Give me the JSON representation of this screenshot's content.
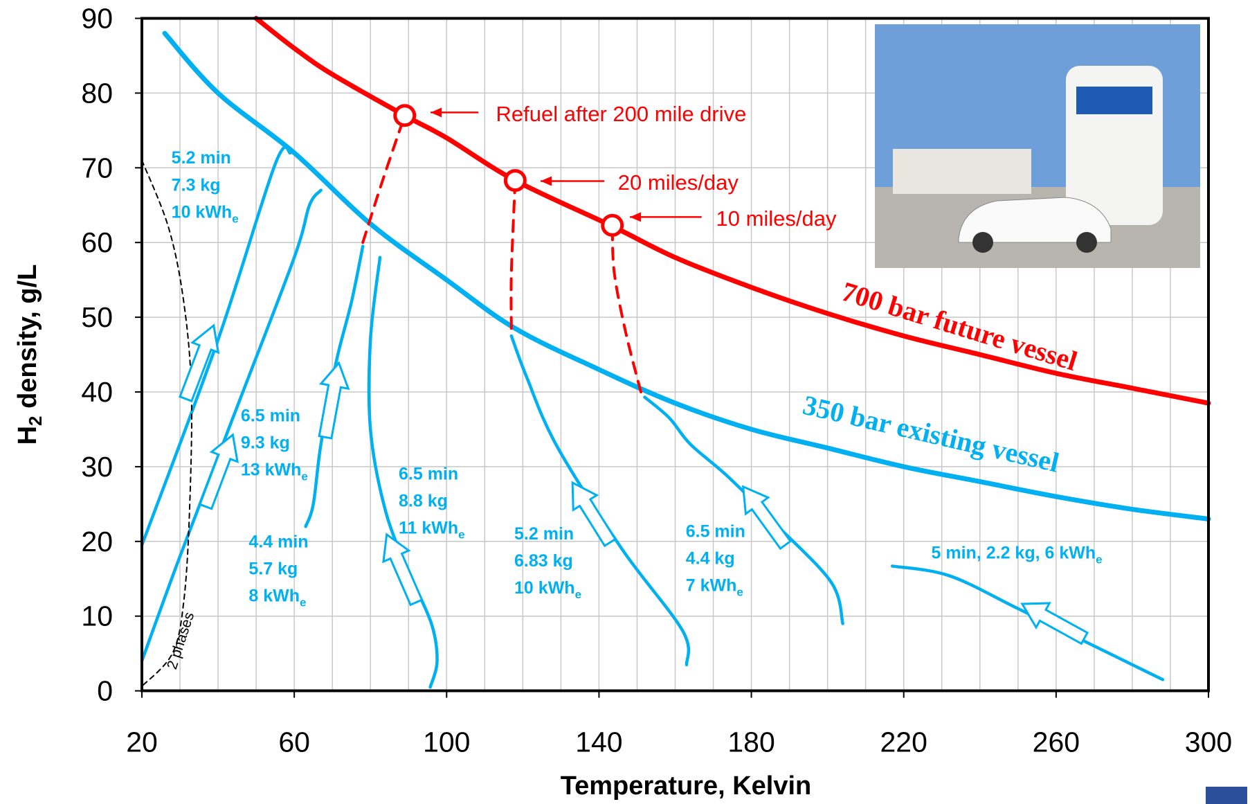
{
  "chart_data": {
    "type": "line",
    "xlabel": "Temperature, Kelvin",
    "ylabel_parts": [
      "H",
      "2",
      " density, g/L"
    ],
    "xlim": [
      20,
      300
    ],
    "ylim": [
      0,
      90
    ],
    "xticks": [
      20,
      60,
      100,
      140,
      180,
      220,
      260,
      300
    ],
    "yticks": [
      0,
      10,
      20,
      30,
      40,
      50,
      60,
      70,
      80,
      90
    ],
    "grid": true,
    "series": [
      {
        "name": "700 bar  future vessel",
        "color": "#ff0000",
        "x": [
          50,
          60,
          70,
          89,
          100,
          118,
          143,
          160,
          180,
          200,
          220,
          240,
          260,
          280,
          300
        ],
        "values": [
          90,
          86,
          82.5,
          77,
          74,
          68.3,
          62.3,
          58,
          54,
          50.5,
          47.5,
          45,
          42.5,
          40.5,
          38.5
        ]
      },
      {
        "name": "350 bar  existing vessel",
        "color": "#00b0f0",
        "x": [
          26,
          40,
          60,
          80,
          100,
          118,
          140,
          160,
          180,
          200,
          220,
          240,
          260,
          280,
          300
        ],
        "values": [
          88,
          80,
          72,
          62.5,
          55,
          48.5,
          43,
          38.5,
          35,
          32.5,
          30,
          28,
          26,
          24.3,
          23
        ]
      },
      {
        "color": "#00b0f0",
        "x": [
          20,
          40,
          55,
          59
        ],
        "values": [
          19.5,
          47,
          70.5,
          72
        ],
        "labels": [
          {
            "text": "5.2 min"
          },
          {
            "text": "7.3 kg"
          },
          {
            "text": "10 kWh",
            "sub": "e"
          }
        ]
      },
      {
        "color": "#00b0f0",
        "x": [
          20,
          30,
          45,
          60,
          64,
          67
        ],
        "values": [
          4,
          18,
          38,
          58,
          65,
          67
        ],
        "labels": [
          {
            "text": "6.5 min"
          },
          {
            "text": "9.3 kg"
          },
          {
            "text": "13 kWh",
            "sub": "e"
          }
        ]
      },
      {
        "color": "#00b0f0",
        "x": [
          63,
          65,
          67,
          71,
          75,
          78
        ],
        "values": [
          22,
          25,
          33,
          44,
          52,
          59.5
        ],
        "labels": [
          {
            "text": "4.4 min"
          },
          {
            "text": "5.7 kg"
          },
          {
            "text": "8 kWh",
            "sub": "e"
          }
        ]
      },
      {
        "color": "#00b0f0",
        "x": [
          95.7,
          97.5,
          96,
          90,
          84,
          80,
          80,
          82.5
        ],
        "values": [
          0.5,
          4,
          9,
          16,
          24,
          35,
          47,
          58
        ],
        "labels": [
          {
            "text": "6.5 min"
          },
          {
            "text": "8.8 kg"
          },
          {
            "text": "11 kWh",
            "sub": "e"
          }
        ]
      },
      {
        "color": "#00b0f0",
        "x": [
          163,
          162,
          146,
          129,
          121,
          117
        ],
        "values": [
          3.5,
          8,
          19,
          32.7,
          42,
          47.5
        ],
        "labels": [
          {
            "text": "5.2 min"
          },
          {
            "text": "6.83 kg"
          },
          {
            "text": "10 kWh",
            "sub": "e"
          }
        ]
      },
      {
        "color": "#00b0f0",
        "x": [
          204,
          201,
          187,
          174,
          164,
          158.5,
          152
        ],
        "values": [
          9,
          14.5,
          22,
          28.6,
          33,
          36.5,
          39.3
        ],
        "labels": [
          {
            "text": "6.5 min"
          },
          {
            "text": "4.4 kg"
          },
          {
            "text": "7 kWh",
            "sub": "e"
          }
        ]
      },
      {
        "color": "#00b0f0",
        "x": [
          217,
          232,
          250,
          270,
          288
        ],
        "values": [
          16.7,
          15.4,
          11,
          6,
          1.5
        ],
        "labels": [
          {
            "text": "5 min, 2.2 kg, 6 kWh",
            "sub": "e"
          }
        ]
      },
      {
        "color": "#ff0000",
        "dashed": true,
        "x": [
          78,
          83,
          89
        ],
        "values": [
          60,
          68,
          77
        ],
        "end_label": "Refuel after 200 mile drive"
      },
      {
        "color": "#ff0000",
        "dashed": true,
        "x": [
          117,
          117,
          118
        ],
        "values": [
          48.5,
          56,
          68.3
        ],
        "end_label": "20 miles/day"
      },
      {
        "color": "#ff0000",
        "dashed": true,
        "x": [
          151,
          147,
          144,
          143.5
        ],
        "values": [
          40,
          48,
          56,
          62.3
        ],
        "end_label": "10 miles/day"
      },
      {
        "name": "2 phases",
        "color": "#000000",
        "dashed": true,
        "x": [
          20,
          27,
          31,
          33,
          32.5,
          31,
          28,
          20
        ],
        "values": [
          71,
          62,
          52,
          40,
          24,
          12,
          5,
          0.6
        ]
      }
    ]
  }
}
